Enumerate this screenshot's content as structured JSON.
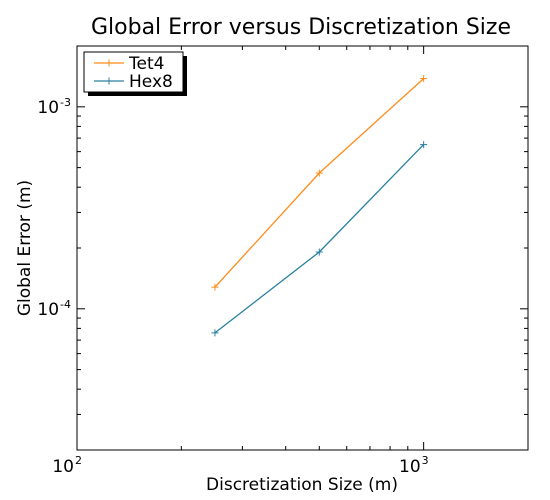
{
  "chart_data": {
    "type": "line",
    "title": "Global Error versus Discretization Size",
    "xlabel": "Discretization Size (m)",
    "ylabel": "Global Error (m)",
    "xscale": "log",
    "yscale": "log",
    "xlim": [
      100,
      2000
    ],
    "ylim": [
      2e-05,
      0.002
    ],
    "grid": false,
    "legend": "top-left",
    "x_ticks": [
      {
        "base": "10",
        "exp": "2",
        "value": 100
      },
      {
        "base": "10",
        "exp": "3",
        "value": 1000
      }
    ],
    "y_ticks": [
      {
        "base": "10",
        "exp": "-4",
        "value": 0.0001
      },
      {
        "base": "10",
        "exp": "-3",
        "value": 0.001
      }
    ],
    "series": [
      {
        "name": "Tet4",
        "color": "#ff8c1a",
        "x": [
          250,
          500,
          1000
        ],
        "y": [
          0.000128,
          0.00047,
          0.00138
        ]
      },
      {
        "name": "Hex8",
        "color": "#2980a0",
        "x": [
          250,
          500,
          1000
        ],
        "y": [
          7.6e-05,
          0.000191,
          0.00065
        ]
      }
    ]
  }
}
